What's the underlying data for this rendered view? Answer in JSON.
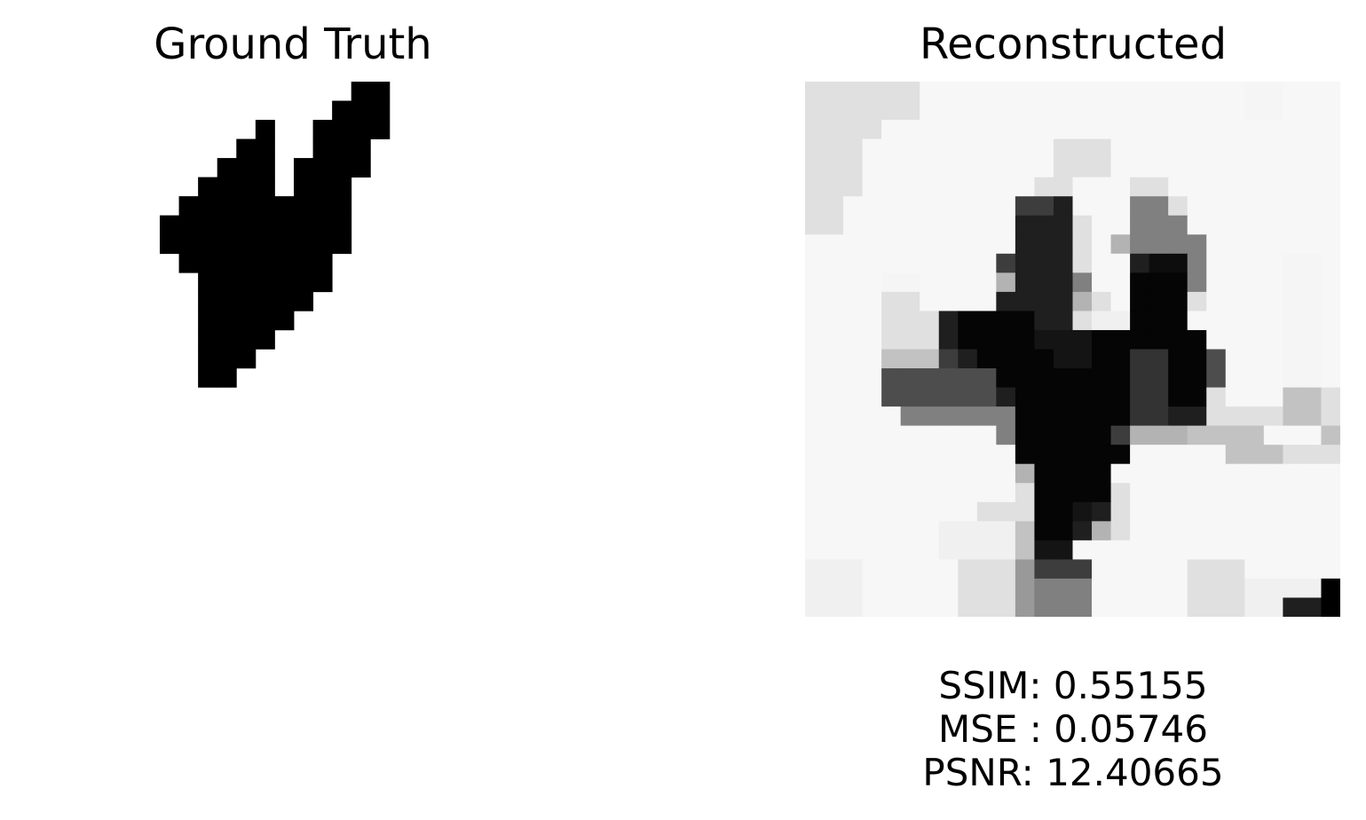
{
  "panels": {
    "ground_truth_title": "Ground Truth",
    "reconstructed_title": "Reconstructed"
  },
  "metrics": {
    "ssim": "SSIM: 0.55155",
    "mse": "MSE : 0.05746",
    "psnr": "PSNR: 12.40665"
  },
  "chart_data": [
    {
      "type": "heatmap",
      "title": "Ground Truth",
      "colormap": "gray_r",
      "rows": 28,
      "cols": 28,
      "pixels": [
        [
          12,
          23,
          "11111111111111111111111111111111111111111111111111111111111111110000"
        ],
        [
          13,
          24,
          "000000000001111111111111111111111111111100000000000000000000000000"
        ]
      ],
      "mask_rows": [
        "............................",
        "............................",
        "............................",
        "............................",
        "............................",
        ".............##.............",
        "............###.............",
        "........#..####.............",
        ".......##..###..............",
        "......###.####..............",
        ".....####.###...............",
        "....#########...............",
        "...##########...............",
        "...##########...............",
        "....########................",
        ".....#######................",
        ".....######.................",
        ".....#####..................",
        ".....####...................",
        ".....###....................",
        ".....##.....................",
        "............................",
        "............................",
        "............................",
        "............................",
        "............................",
        "............................",
        "............................"
      ]
    },
    {
      "type": "heatmap",
      "title": "Reconstructed",
      "colormap": "gray_r",
      "rows": 28,
      "cols": 28,
      "values": [
        [
          0.12,
          0.12,
          0.12,
          0.12,
          0.12,
          0.12,
          0.03,
          0.03,
          0.03,
          0.03,
          0.03,
          0.03,
          0.03,
          0.03,
          0.03,
          0.03,
          0.03,
          0.03,
          0.03,
          0.03,
          0.03,
          0.03,
          0.03,
          0.04,
          0.04,
          0.03,
          0.03,
          0.03
        ],
        [
          0.12,
          0.12,
          0.12,
          0.12,
          0.12,
          0.12,
          0.03,
          0.03,
          0.03,
          0.03,
          0.03,
          0.03,
          0.03,
          0.03,
          0.03,
          0.03,
          0.03,
          0.03,
          0.03,
          0.03,
          0.03,
          0.03,
          0.03,
          0.04,
          0.04,
          0.03,
          0.03,
          0.03
        ],
        [
          0.12,
          0.12,
          0.12,
          0.12,
          0.03,
          0.03,
          0.03,
          0.03,
          0.03,
          0.03,
          0.03,
          0.03,
          0.03,
          0.03,
          0.03,
          0.03,
          0.03,
          0.03,
          0.03,
          0.03,
          0.03,
          0.03,
          0.03,
          0.03,
          0.03,
          0.03,
          0.03,
          0.03
        ],
        [
          0.12,
          0.12,
          0.12,
          0.03,
          0.03,
          0.03,
          0.03,
          0.03,
          0.03,
          0.03,
          0.03,
          0.03,
          0.03,
          0.12,
          0.12,
          0.12,
          0.03,
          0.03,
          0.03,
          0.03,
          0.03,
          0.03,
          0.03,
          0.03,
          0.03,
          0.03,
          0.03,
          0.03
        ],
        [
          0.12,
          0.12,
          0.12,
          0.03,
          0.03,
          0.03,
          0.03,
          0.03,
          0.03,
          0.03,
          0.03,
          0.03,
          0.03,
          0.12,
          0.12,
          0.12,
          0.03,
          0.03,
          0.03,
          0.03,
          0.03,
          0.03,
          0.03,
          0.03,
          0.03,
          0.03,
          0.03,
          0.03
        ],
        [
          0.12,
          0.12,
          0.12,
          0.03,
          0.03,
          0.03,
          0.03,
          0.03,
          0.03,
          0.03,
          0.03,
          0.03,
          0.12,
          0.12,
          0.03,
          0.03,
          0.03,
          0.12,
          0.12,
          0.03,
          0.03,
          0.03,
          0.03,
          0.03,
          0.03,
          0.03,
          0.03,
          0.03
        ],
        [
          0.12,
          0.12,
          0.03,
          0.03,
          0.03,
          0.03,
          0.03,
          0.03,
          0.03,
          0.03,
          0.03,
          0.76,
          0.76,
          0.88,
          0.03,
          0.03,
          0.03,
          0.5,
          0.5,
          0.12,
          0.03,
          0.03,
          0.03,
          0.03,
          0.03,
          0.03,
          0.03,
          0.03
        ],
        [
          0.12,
          0.12,
          0.03,
          0.03,
          0.03,
          0.03,
          0.03,
          0.03,
          0.03,
          0.03,
          0.03,
          0.88,
          0.88,
          0.88,
          0.12,
          0.03,
          0.03,
          0.5,
          0.5,
          0.5,
          0.03,
          0.03,
          0.03,
          0.03,
          0.03,
          0.03,
          0.03,
          0.03
        ],
        [
          0.03,
          0.03,
          0.03,
          0.03,
          0.03,
          0.03,
          0.03,
          0.03,
          0.03,
          0.03,
          0.03,
          0.88,
          0.88,
          0.88,
          0.12,
          0.03,
          0.3,
          0.5,
          0.5,
          0.5,
          0.5,
          0.03,
          0.03,
          0.03,
          0.03,
          0.03,
          0.03,
          0.03
        ],
        [
          0.03,
          0.03,
          0.03,
          0.03,
          0.03,
          0.03,
          0.03,
          0.03,
          0.03,
          0.03,
          0.76,
          0.88,
          0.88,
          0.88,
          0.12,
          0.03,
          0.03,
          0.88,
          0.95,
          0.95,
          0.5,
          0.03,
          0.03,
          0.03,
          0.03,
          0.04,
          0.04,
          0.03
        ],
        [
          0.03,
          0.03,
          0.03,
          0.03,
          0.04,
          0.04,
          0.03,
          0.03,
          0.03,
          0.03,
          0.3,
          0.88,
          0.88,
          0.88,
          0.5,
          0.03,
          0.03,
          0.98,
          0.98,
          0.98,
          0.5,
          0.03,
          0.03,
          0.03,
          0.03,
          0.04,
          0.04,
          0.03
        ],
        [
          0.03,
          0.03,
          0.03,
          0.03,
          0.12,
          0.12,
          0.03,
          0.03,
          0.03,
          0.03,
          0.88,
          0.88,
          0.88,
          0.88,
          0.3,
          0.12,
          0.03,
          0.98,
          0.98,
          0.98,
          0.12,
          0.03,
          0.03,
          0.03,
          0.03,
          0.04,
          0.04,
          0.03
        ],
        [
          0.03,
          0.03,
          0.03,
          0.03,
          0.12,
          0.12,
          0.12,
          0.88,
          0.98,
          0.98,
          0.98,
          0.98,
          0.88,
          0.88,
          0.12,
          0.06,
          0.06,
          0.98,
          0.98,
          0.98,
          0.03,
          0.03,
          0.03,
          0.03,
          0.03,
          0.04,
          0.04,
          0.03
        ],
        [
          0.03,
          0.03,
          0.03,
          0.03,
          0.12,
          0.12,
          0.12,
          0.88,
          0.98,
          0.98,
          0.98,
          0.98,
          0.92,
          0.92,
          0.92,
          0.98,
          0.98,
          0.98,
          0.98,
          0.98,
          0.98,
          0.03,
          0.03,
          0.03,
          0.03,
          0.04,
          0.04,
          0.03
        ],
        [
          0.03,
          0.03,
          0.03,
          0.03,
          0.24,
          0.24,
          0.24,
          0.76,
          0.88,
          0.98,
          0.98,
          0.98,
          0.98,
          0.92,
          0.92,
          0.98,
          0.98,
          0.8,
          0.8,
          0.98,
          0.98,
          0.7,
          0.03,
          0.03,
          0.03,
          0.04,
          0.04,
          0.03
        ],
        [
          0.03,
          0.03,
          0.03,
          0.03,
          0.7,
          0.7,
          0.7,
          0.7,
          0.7,
          0.7,
          0.98,
          0.98,
          0.98,
          0.98,
          0.98,
          0.98,
          0.98,
          0.8,
          0.8,
          0.98,
          0.98,
          0.7,
          0.03,
          0.03,
          0.03,
          0.04,
          0.04,
          0.03
        ],
        [
          0.03,
          0.03,
          0.03,
          0.03,
          0.7,
          0.7,
          0.7,
          0.7,
          0.7,
          0.7,
          0.88,
          0.98,
          0.98,
          0.98,
          0.98,
          0.98,
          0.98,
          0.8,
          0.8,
          0.98,
          0.98,
          0.12,
          0.03,
          0.03,
          0.03,
          0.24,
          0.24,
          0.12
        ],
        [
          0.03,
          0.03,
          0.03,
          0.03,
          0.03,
          0.5,
          0.5,
          0.5,
          0.5,
          0.5,
          0.5,
          0.98,
          0.98,
          0.98,
          0.98,
          0.98,
          0.98,
          0.8,
          0.8,
          0.88,
          0.88,
          0.12,
          0.12,
          0.12,
          0.12,
          0.24,
          0.24,
          0.12
        ],
        [
          0.03,
          0.03,
          0.03,
          0.03,
          0.03,
          0.03,
          0.03,
          0.03,
          0.03,
          0.03,
          0.5,
          0.98,
          0.98,
          0.98,
          0.98,
          0.98,
          0.76,
          0.3,
          0.3,
          0.3,
          0.24,
          0.24,
          0.24,
          0.24,
          0.03,
          0.03,
          0.03,
          0.24
        ],
        [
          0.03,
          0.03,
          0.03,
          0.03,
          0.03,
          0.03,
          0.03,
          0.03,
          0.03,
          0.03,
          0.03,
          0.98,
          0.98,
          0.98,
          0.98,
          0.98,
          0.98,
          0.03,
          0.03,
          0.03,
          0.03,
          0.03,
          0.24,
          0.24,
          0.24,
          0.12,
          0.12,
          0.12
        ],
        [
          0.03,
          0.03,
          0.03,
          0.03,
          0.03,
          0.03,
          0.03,
          0.03,
          0.03,
          0.03,
          0.03,
          0.3,
          0.98,
          0.98,
          0.98,
          0.98,
          0.03,
          0.03,
          0.03,
          0.03,
          0.03,
          0.03,
          0.03,
          0.03,
          0.03,
          0.03,
          0.03,
          0.03
        ],
        [
          0.03,
          0.03,
          0.03,
          0.03,
          0.03,
          0.03,
          0.03,
          0.03,
          0.03,
          0.03,
          0.03,
          0.12,
          0.98,
          0.98,
          0.98,
          0.98,
          0.12,
          0.03,
          0.03,
          0.03,
          0.03,
          0.03,
          0.03,
          0.03,
          0.03,
          0.03,
          0.03,
          0.03
        ],
        [
          0.03,
          0.03,
          0.03,
          0.03,
          0.03,
          0.03,
          0.03,
          0.03,
          0.03,
          0.12,
          0.12,
          0.12,
          0.98,
          0.98,
          0.92,
          0.88,
          0.12,
          0.03,
          0.03,
          0.03,
          0.03,
          0.03,
          0.03,
          0.03,
          0.03,
          0.03,
          0.03,
          0.03
        ],
        [
          0.03,
          0.03,
          0.03,
          0.03,
          0.03,
          0.03,
          0.03,
          0.06,
          0.06,
          0.06,
          0.06,
          0.24,
          0.98,
          0.98,
          0.88,
          0.3,
          0.12,
          0.03,
          0.03,
          0.03,
          0.03,
          0.03,
          0.03,
          0.03,
          0.03,
          0.03,
          0.03,
          0.03
        ],
        [
          0.03,
          0.03,
          0.03,
          0.03,
          0.03,
          0.03,
          0.03,
          0.06,
          0.06,
          0.06,
          0.06,
          0.24,
          0.92,
          0.92,
          0.03,
          0.03,
          0.03,
          0.03,
          0.03,
          0.03,
          0.03,
          0.03,
          0.03,
          0.03,
          0.03,
          0.03,
          0.03,
          0.03
        ],
        [
          0.06,
          0.06,
          0.06,
          0.03,
          0.03,
          0.03,
          0.03,
          0.03,
          0.12,
          0.12,
          0.12,
          0.4,
          0.76,
          0.76,
          0.76,
          0.03,
          0.03,
          0.03,
          0.03,
          0.03,
          0.12,
          0.12,
          0.12,
          0.03,
          0.03,
          0.03,
          0.03,
          0.03
        ],
        [
          0.06,
          0.06,
          0.06,
          0.03,
          0.03,
          0.03,
          0.03,
          0.03,
          0.12,
          0.12,
          0.12,
          0.4,
          0.5,
          0.5,
          0.5,
          0.03,
          0.03,
          0.03,
          0.03,
          0.03,
          0.12,
          0.12,
          0.12,
          0.06,
          0.06,
          0.06,
          0.06,
          1.0
        ],
        [
          0.06,
          0.06,
          0.06,
          0.03,
          0.03,
          0.03,
          0.03,
          0.03,
          0.12,
          0.12,
          0.12,
          0.4,
          0.5,
          0.5,
          0.5,
          0.03,
          0.03,
          0.03,
          0.03,
          0.03,
          0.12,
          0.12,
          0.12,
          0.06,
          0.06,
          0.88,
          0.88,
          1.0
        ]
      ]
    }
  ]
}
